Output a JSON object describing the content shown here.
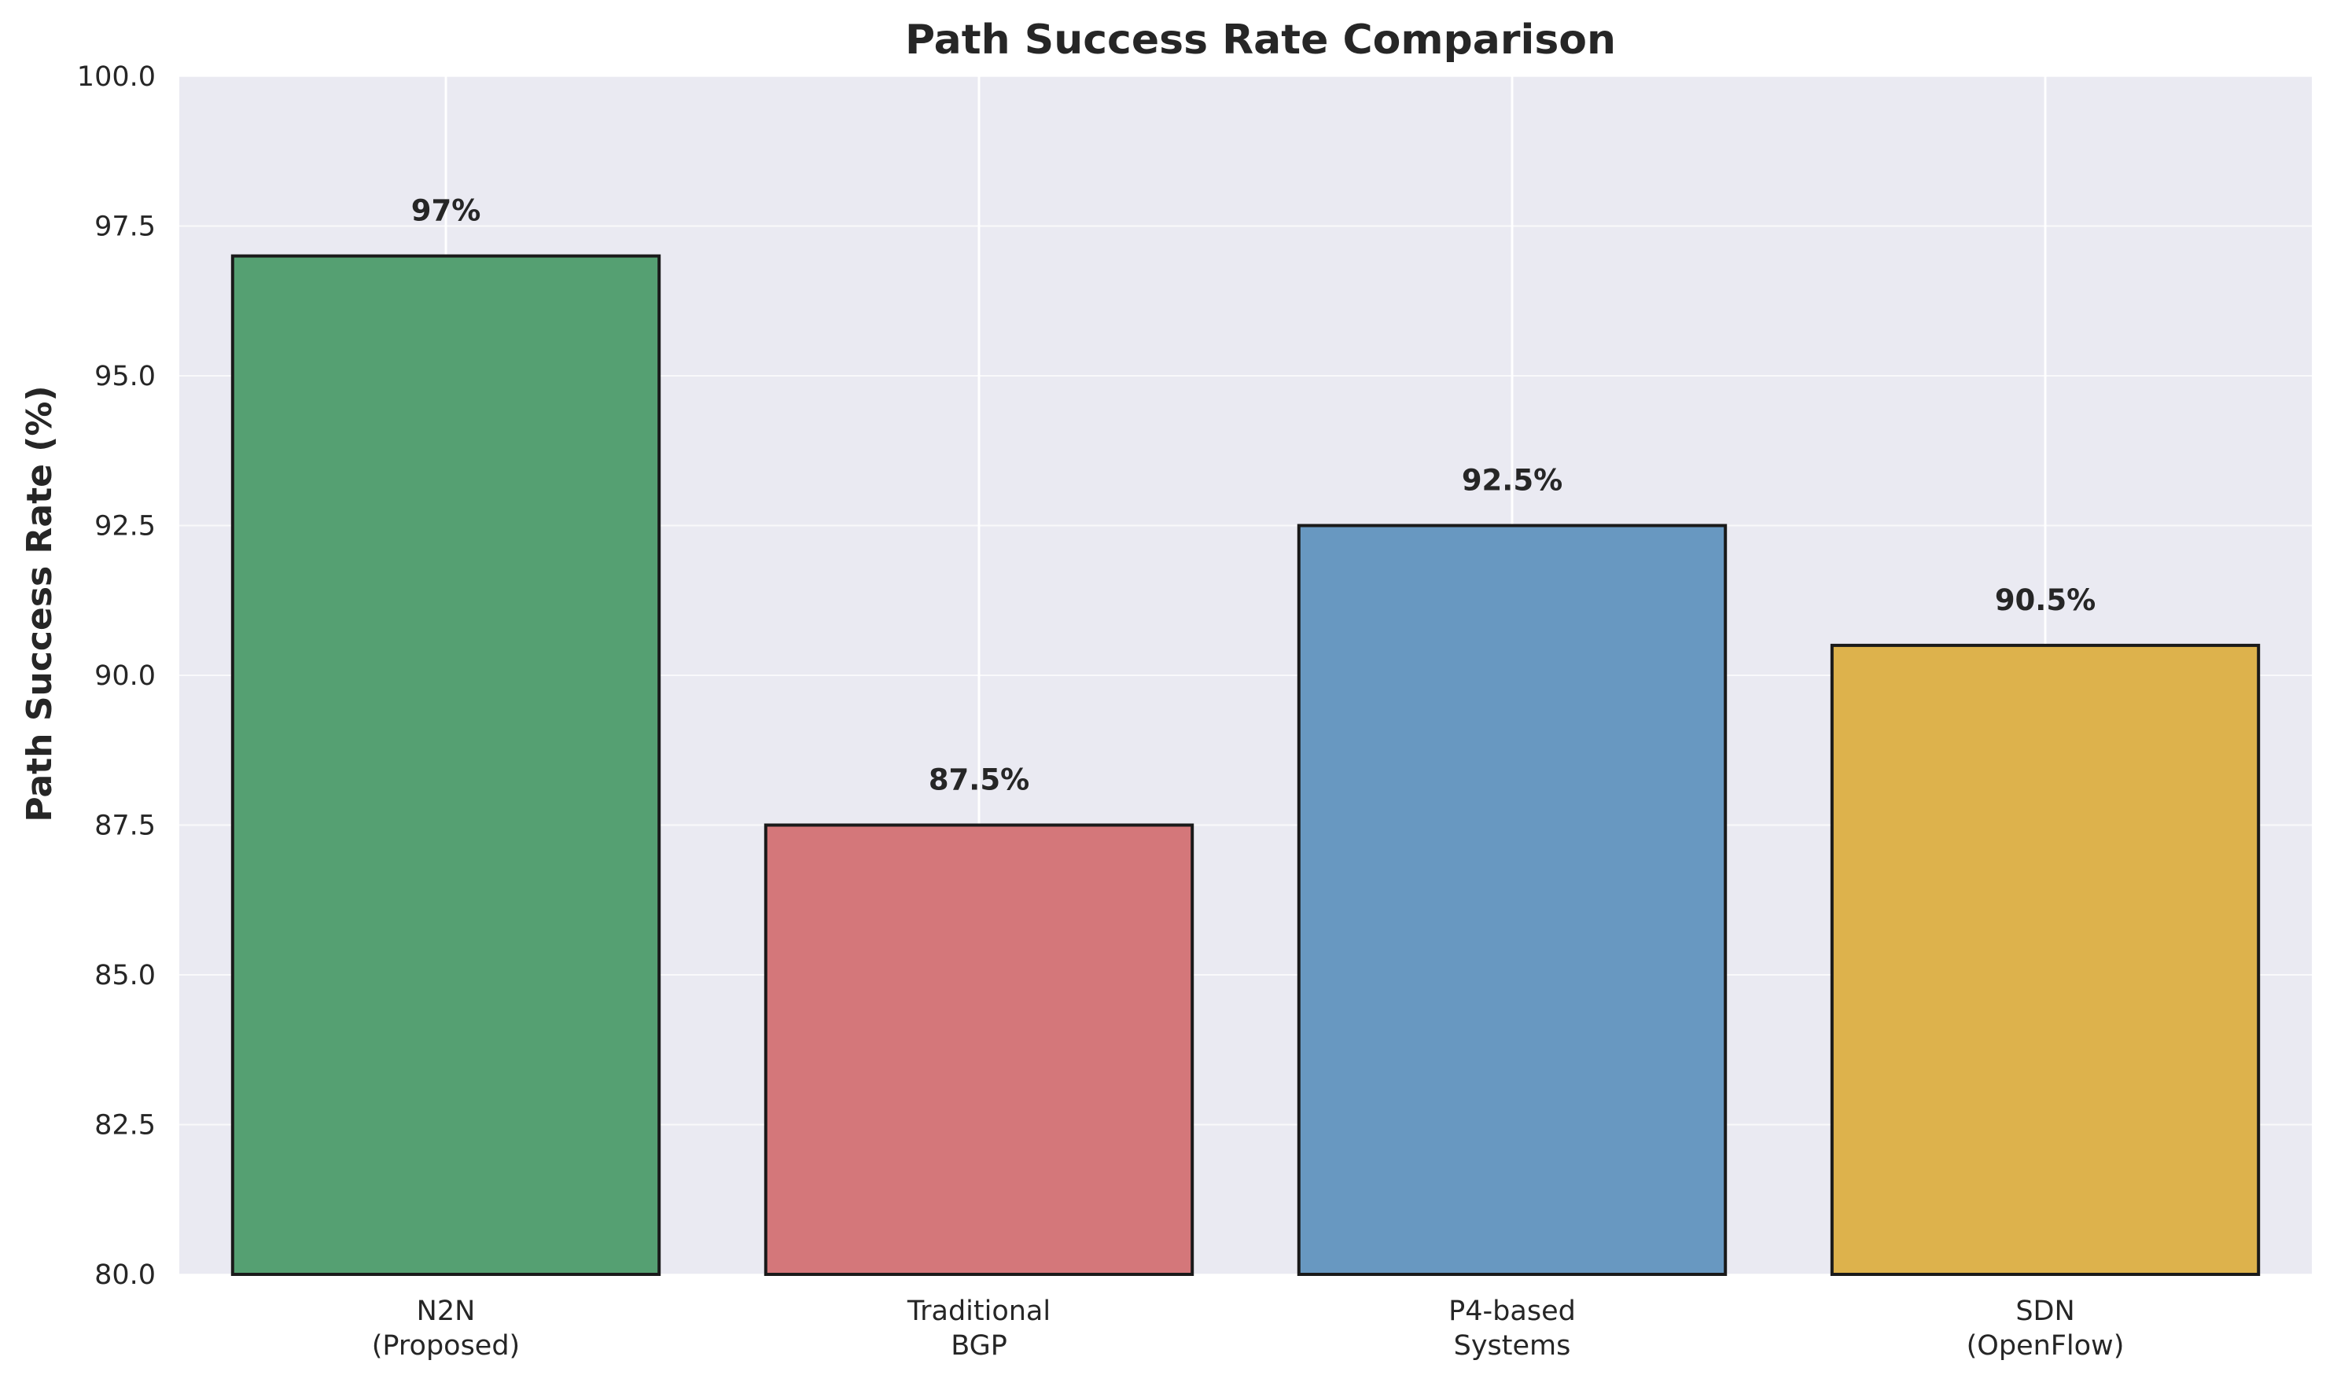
{
  "chart_data": {
    "type": "bar",
    "title": "Path Success Rate Comparison",
    "xlabel": "",
    "ylabel": "Path Success Rate (%)",
    "ylim": [
      80,
      100
    ],
    "yticks": [
      "80.0",
      "82.5",
      "85.0",
      "87.5",
      "90.0",
      "92.5",
      "95.0",
      "97.5",
      "100.0"
    ],
    "ytick_values": [
      80,
      82.5,
      85,
      87.5,
      90,
      92.5,
      95,
      97.5,
      100
    ],
    "categories": [
      [
        "N2N",
        "(Proposed)"
      ],
      [
        "Traditional",
        "BGP"
      ],
      [
        "P4-based",
        "Systems"
      ],
      [
        "SDN",
        "(OpenFlow)"
      ]
    ],
    "values": [
      97,
      87.5,
      92.5,
      90.5
    ],
    "value_labels": [
      "97%",
      "87.5%",
      "92.5%",
      "90.5%"
    ],
    "colors": [
      "#55a072",
      "#d4777a",
      "#6898c1",
      "#ddb24c"
    ],
    "edge_color": "#1a1a1a",
    "background": "#eaeaf2",
    "grid": true,
    "grid_color": "#ffffff"
  }
}
